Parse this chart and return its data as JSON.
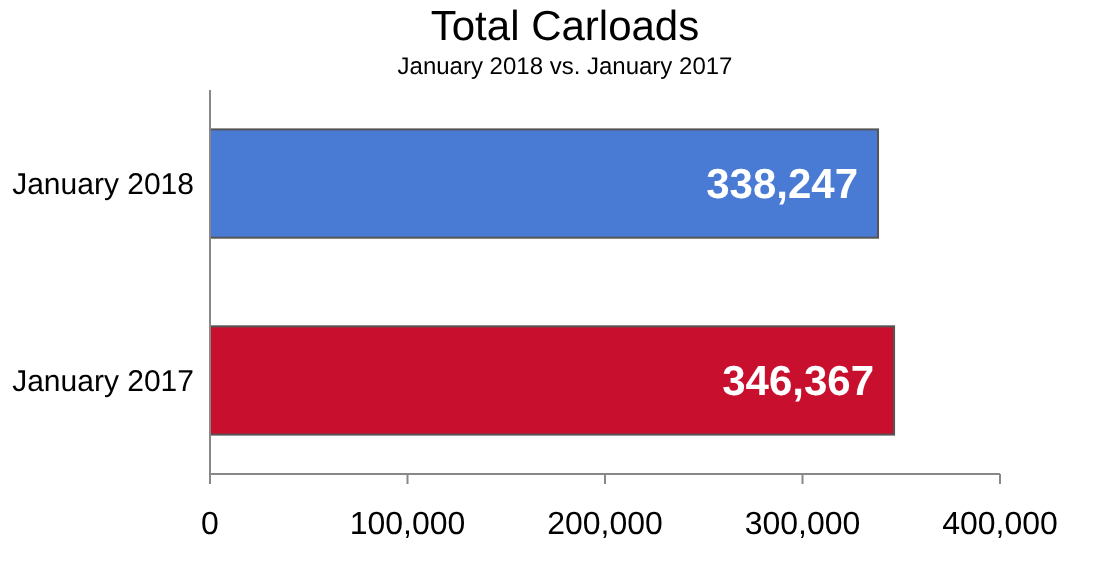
{
  "chart_data": {
    "type": "bar",
    "orientation": "horizontal",
    "title": "Total Carloads",
    "subtitle": "January 2018 vs. January 2017",
    "categories": [
      "January 2018",
      "January 2017"
    ],
    "values": [
      338247,
      346367
    ],
    "colors": [
      "#4a7bd4",
      "#c8102e"
    ],
    "value_labels": [
      "338,247",
      "346,367"
    ],
    "xlim": [
      0,
      400000
    ],
    "xticks": [
      0,
      {
        "value": 100000,
        "label": "100,000"
      },
      {
        "value": 200000,
        "label": "200,000"
      },
      {
        "value": 300000,
        "label": "300,000"
      },
      {
        "value": 400000,
        "label": "400,000"
      }
    ],
    "grid": false
  }
}
